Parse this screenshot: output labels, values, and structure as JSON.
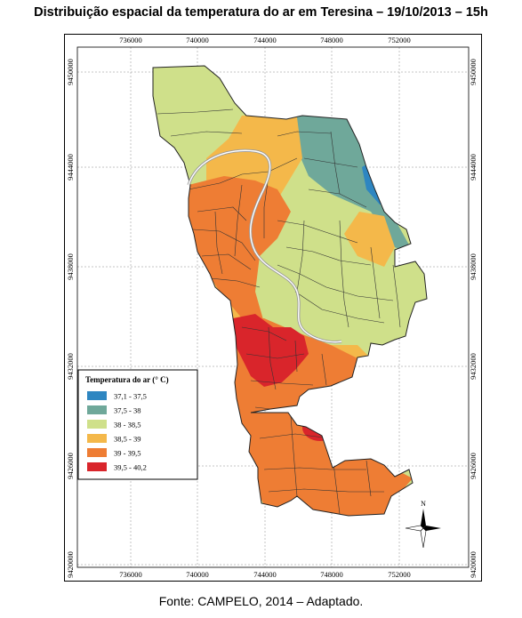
{
  "title": "Distribuição espacial da temperatura do ar em Teresina – 19/10/2013 – 15h",
  "source": "Fonte: CAMPELO, 2014 – Adaptado.",
  "x_ticks": [
    "736000",
    "740000",
    "744000",
    "748000",
    "752000"
  ],
  "y_ticks": [
    "9450000",
    "9444000",
    "9438000",
    "9432000",
    "9426000",
    "9420000"
  ],
  "legend": {
    "title": "Temperatura do ar (° C)",
    "classes": [
      {
        "label": "37,1 - 37,5",
        "color": "#2e86c1"
      },
      {
        "label": "37,5 - 38",
        "color": "#6fa89a"
      },
      {
        "label": "38 - 38,5",
        "color": "#cfe08a"
      },
      {
        "label": "38,5 - 39",
        "color": "#f4b84a"
      },
      {
        "label": "39 - 39,5",
        "color": "#ee7d34"
      },
      {
        "label": "39,5 - 40,2",
        "color": "#d9252b"
      }
    ]
  },
  "north_arrow": {
    "label": "N"
  },
  "colors": {
    "river": "#9a9a9a",
    "border": "#333333"
  }
}
